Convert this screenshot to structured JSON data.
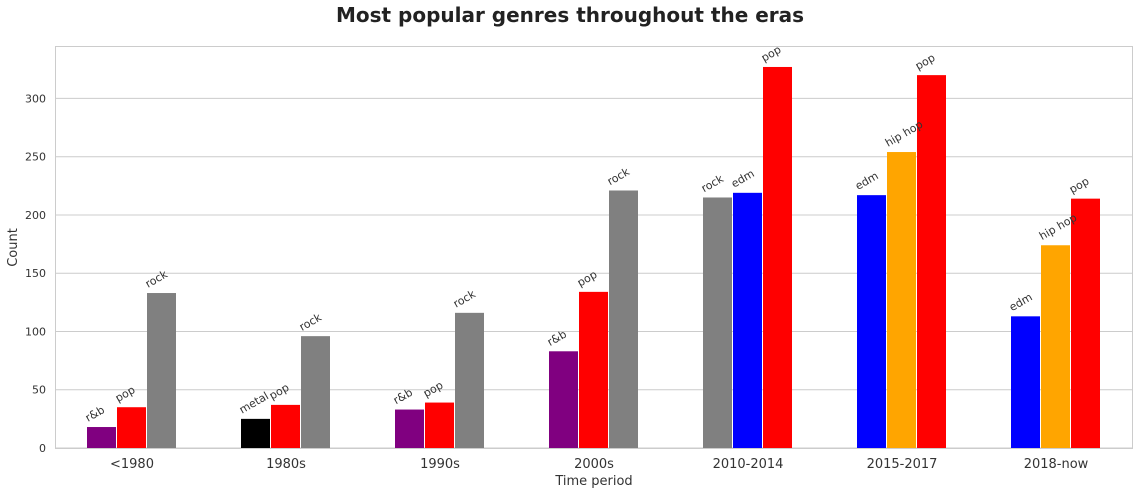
{
  "chart_data": {
    "type": "bar",
    "title": "Most popular genres throughout the eras",
    "xlabel": "Time period",
    "ylabel": "Count",
    "ylim": [
      0,
      345
    ],
    "yticks": [
      0,
      50,
      100,
      150,
      200,
      250,
      300
    ],
    "grid": "horizontal",
    "categories": [
      "<1980",
      "1980s",
      "1990s",
      "2000s",
      "2010-2014",
      "2015-2017",
      "2018-now"
    ],
    "genre_colors": {
      "r&b": "#800080",
      "pop": "#ff0000",
      "rock": "#808080",
      "metal": "#000000",
      "edm": "#0000ff",
      "hip hop": "#ffa500"
    },
    "groups": [
      {
        "category": "<1980",
        "bars": [
          {
            "genre": "r&b",
            "value": 18
          },
          {
            "genre": "pop",
            "value": 35
          },
          {
            "genre": "rock",
            "value": 133
          }
        ]
      },
      {
        "category": "1980s",
        "bars": [
          {
            "genre": "metal",
            "value": 25
          },
          {
            "genre": "pop",
            "value": 37
          },
          {
            "genre": "rock",
            "value": 96
          }
        ]
      },
      {
        "category": "1990s",
        "bars": [
          {
            "genre": "r&b",
            "value": 33
          },
          {
            "genre": "pop",
            "value": 39
          },
          {
            "genre": "rock",
            "value": 116
          }
        ]
      },
      {
        "category": "2000s",
        "bars": [
          {
            "genre": "r&b",
            "value": 83
          },
          {
            "genre": "pop",
            "value": 134
          },
          {
            "genre": "rock",
            "value": 221
          }
        ]
      },
      {
        "category": "2010-2014",
        "bars": [
          {
            "genre": "rock",
            "value": 215
          },
          {
            "genre": "edm",
            "value": 219
          },
          {
            "genre": "pop",
            "value": 327
          }
        ]
      },
      {
        "category": "2015-2017",
        "bars": [
          {
            "genre": "edm",
            "value": 217
          },
          {
            "genre": "hip hop",
            "value": 254
          },
          {
            "genre": "pop",
            "value": 320
          }
        ]
      },
      {
        "category": "2018-now",
        "bars": [
          {
            "genre": "edm",
            "value": 113
          },
          {
            "genre": "hip hop",
            "value": 174
          },
          {
            "genre": "pop",
            "value": 214
          }
        ]
      }
    ]
  }
}
